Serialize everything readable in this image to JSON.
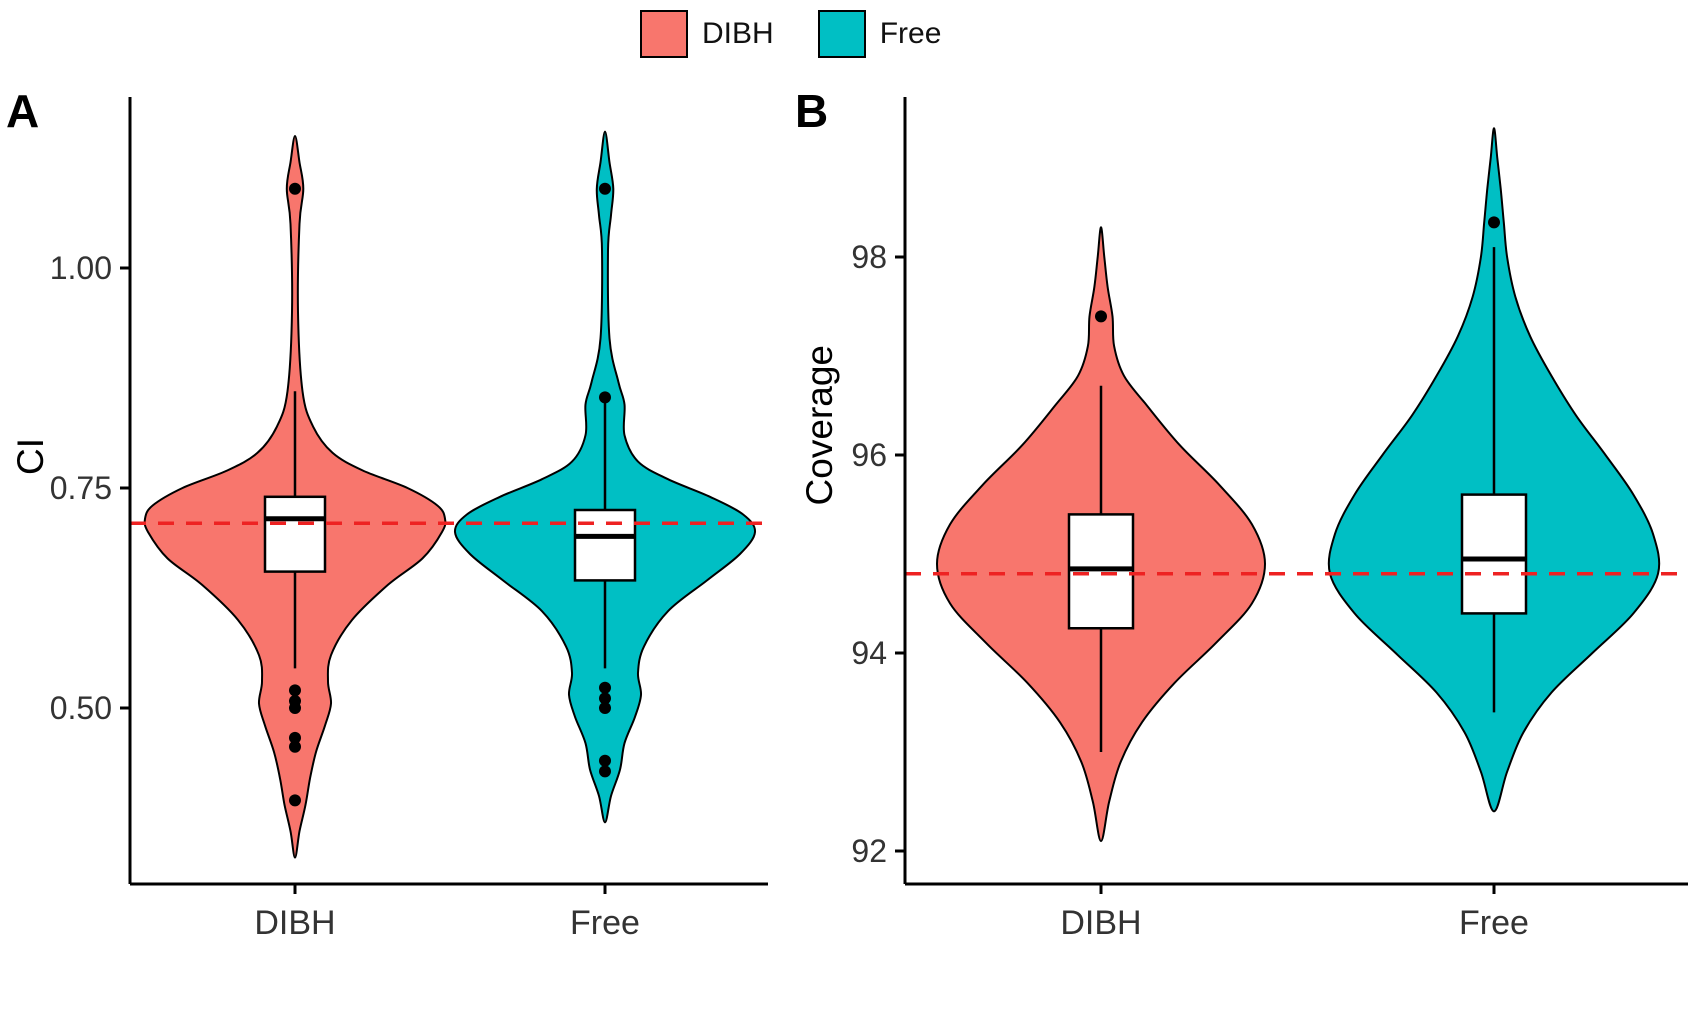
{
  "figure": {
    "background": "#ffffff",
    "axis_color": "#000000",
    "tick_label_color": "#333333"
  },
  "legend": {
    "items": [
      {
        "label": "DIBH",
        "color": "#F8766D"
      },
      {
        "label": "Free",
        "color": "#00BFC4"
      }
    ]
  },
  "chart_data": {
    "type": "violin",
    "reference_line_color": "#EE2222",
    "panels": [
      {
        "id": "A",
        "label": "A",
        "ylabel": "CI",
        "yticks": [
          0.5,
          0.75,
          1.0
        ],
        "ytick_labels": [
          "0.50",
          "0.75",
          "1.00"
        ],
        "ylim": [
          0.3,
          1.19
        ],
        "categories": [
          "DIBH",
          "Free"
        ],
        "reference_line": 0.71,
        "violins": [
          {
            "group": "DIBH",
            "color": "#F8766D",
            "density_profile": [
              [
                0.33,
                0
              ],
              [
                0.36,
                0.03
              ],
              [
                0.39,
                0.07
              ],
              [
                0.42,
                0.1
              ],
              [
                0.45,
                0.14
              ],
              [
                0.48,
                0.2
              ],
              [
                0.505,
                0.24
              ],
              [
                0.53,
                0.22
              ],
              [
                0.56,
                0.24
              ],
              [
                0.6,
                0.38
              ],
              [
                0.64,
                0.62
              ],
              [
                0.67,
                0.85
              ],
              [
                0.7,
                0.98
              ],
              [
                0.715,
                1.0
              ],
              [
                0.73,
                0.95
              ],
              [
                0.75,
                0.75
              ],
              [
                0.77,
                0.45
              ],
              [
                0.79,
                0.25
              ],
              [
                0.82,
                0.12
              ],
              [
                0.86,
                0.05
              ],
              [
                0.95,
                0.02
              ],
              [
                1.05,
                0.03
              ],
              [
                1.09,
                0.055
              ],
              [
                1.12,
                0.03
              ],
              [
                1.15,
                0
              ]
            ],
            "box": {
              "q1": 0.655,
              "median": 0.715,
              "q3": 0.74,
              "whisker_low": 0.545,
              "whisker_high": 0.86
            },
            "outliers": [
              1.09,
              0.52,
              0.508,
              0.5,
              0.466,
              0.456,
              0.395
            ]
          },
          {
            "group": "Free",
            "color": "#00BFC4",
            "density_profile": [
              [
                0.37,
                0
              ],
              [
                0.4,
                0.04
              ],
              [
                0.43,
                0.1
              ],
              [
                0.46,
                0.13
              ],
              [
                0.49,
                0.2
              ],
              [
                0.515,
                0.24
              ],
              [
                0.54,
                0.22
              ],
              [
                0.57,
                0.26
              ],
              [
                0.61,
                0.42
              ],
              [
                0.645,
                0.68
              ],
              [
                0.675,
                0.9
              ],
              [
                0.7,
                1.0
              ],
              [
                0.72,
                0.92
              ],
              [
                0.74,
                0.7
              ],
              [
                0.76,
                0.42
              ],
              [
                0.78,
                0.22
              ],
              [
                0.81,
                0.13
              ],
              [
                0.845,
                0.13
              ],
              [
                0.87,
                0.09
              ],
              [
                0.92,
                0.03
              ],
              [
                1.02,
                0.02
              ],
              [
                1.06,
                0.04
              ],
              [
                1.09,
                0.055
              ],
              [
                1.12,
                0.03
              ],
              [
                1.155,
                0
              ]
            ],
            "box": {
              "q1": 0.645,
              "median": 0.695,
              "q3": 0.725,
              "whisker_low": 0.545,
              "whisker_high": 0.855
            },
            "outliers": [
              1.09,
              0.853,
              0.523,
              0.511,
              0.5,
              0.44,
              0.428
            ]
          }
        ]
      },
      {
        "id": "B",
        "label": "B",
        "ylabel": "Coverage",
        "yticks": [
          92,
          94,
          96,
          98
        ],
        "ytick_labels": [
          "92",
          "94",
          "96",
          "98"
        ],
        "ylim": [
          91.7,
          99.4
        ],
        "categories": [
          "DIBH",
          "Free"
        ],
        "reference_line": 94.8,
        "violins": [
          {
            "group": "DIBH",
            "color": "#F8766D",
            "density_profile": [
              [
                92.1,
                0
              ],
              [
                92.5,
                0.05
              ],
              [
                92.9,
                0.12
              ],
              [
                93.3,
                0.25
              ],
              [
                93.7,
                0.45
              ],
              [
                94.1,
                0.7
              ],
              [
                94.5,
                0.92
              ],
              [
                94.9,
                1.0
              ],
              [
                95.3,
                0.92
              ],
              [
                95.7,
                0.72
              ],
              [
                96.1,
                0.48
              ],
              [
                96.5,
                0.28
              ],
              [
                96.8,
                0.14
              ],
              [
                97.1,
                0.08
              ],
              [
                97.4,
                0.07
              ],
              [
                97.7,
                0.04
              ],
              [
                98.0,
                0.02
              ],
              [
                98.3,
                0
              ]
            ],
            "box": {
              "q1": 94.25,
              "median": 94.85,
              "q3": 95.4,
              "whisker_low": 93.0,
              "whisker_high": 96.7
            },
            "outliers": [
              97.4
            ]
          },
          {
            "group": "Free",
            "color": "#00BFC4",
            "density_profile": [
              [
                92.4,
                0
              ],
              [
                92.8,
                0.08
              ],
              [
                93.2,
                0.18
              ],
              [
                93.6,
                0.35
              ],
              [
                94.0,
                0.6
              ],
              [
                94.4,
                0.85
              ],
              [
                94.8,
                1.0
              ],
              [
                95.2,
                0.97
              ],
              [
                95.6,
                0.85
              ],
              [
                96.0,
                0.68
              ],
              [
                96.4,
                0.5
              ],
              [
                96.8,
                0.35
              ],
              [
                97.2,
                0.22
              ],
              [
                97.6,
                0.13
              ],
              [
                98.0,
                0.08
              ],
              [
                98.35,
                0.06
              ],
              [
                98.7,
                0.04
              ],
              [
                99.0,
                0.02
              ],
              [
                99.3,
                0
              ]
            ],
            "box": {
              "q1": 94.4,
              "median": 94.95,
              "q3": 95.6,
              "whisker_low": 93.4,
              "whisker_high": 98.1
            },
            "outliers": [
              98.35
            ]
          }
        ]
      }
    ]
  }
}
